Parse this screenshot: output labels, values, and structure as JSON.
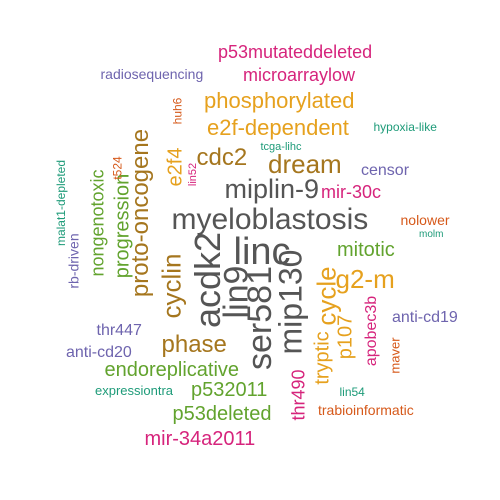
{
  "colors": {
    "gray": "#555555",
    "amber": "#E6A11E",
    "pink": "#D6247C",
    "purple": "#6E64AE",
    "green": "#62A32E",
    "brown": "#A5761E",
    "orange": "#D6591A",
    "teal": "#1E9B79"
  },
  "words": [
    {
      "text": "myeloblastosis",
      "color": "gray"
    },
    {
      "text": "linc",
      "color": "gray"
    },
    {
      "text": "acdk2",
      "color": "gray"
    },
    {
      "text": "lin9",
      "color": "gray"
    },
    {
      "text": "ser581",
      "color": "gray"
    },
    {
      "text": "mip130",
      "color": "gray"
    },
    {
      "text": "miplin-9",
      "color": "gray"
    },
    {
      "text": "dream",
      "color": "brown"
    },
    {
      "text": "cdc2",
      "color": "brown"
    },
    {
      "text": "proto-oncogene",
      "color": "brown"
    },
    {
      "text": "cyclin",
      "color": "brown"
    },
    {
      "text": "phase",
      "color": "brown"
    },
    {
      "text": "phosphorylated",
      "color": "amber"
    },
    {
      "text": "e2f-dependent",
      "color": "amber"
    },
    {
      "text": "e2f4",
      "color": "amber"
    },
    {
      "text": "g2-m",
      "color": "amber"
    },
    {
      "text": "cycle",
      "color": "amber"
    },
    {
      "text": "tryptic",
      "color": "amber"
    },
    {
      "text": "p107",
      "color": "amber"
    },
    {
      "text": "progression",
      "color": "green"
    },
    {
      "text": "nongenotoxic",
      "color": "green"
    },
    {
      "text": "mitotic",
      "color": "green"
    },
    {
      "text": "endoreplicative",
      "color": "green"
    },
    {
      "text": "p532011",
      "color": "green"
    },
    {
      "text": "p53deleted",
      "color": "green"
    },
    {
      "text": "p53mutateddeleted",
      "color": "pink"
    },
    {
      "text": "microarraylow",
      "color": "pink"
    },
    {
      "text": "mir-30c",
      "color": "pink"
    },
    {
      "text": "apobec3b",
      "color": "pink"
    },
    {
      "text": "thr490",
      "color": "pink"
    },
    {
      "text": "mir-34a2011",
      "color": "pink"
    },
    {
      "text": "lin52",
      "color": "pink"
    },
    {
      "text": "radiosequencing",
      "color": "purple"
    },
    {
      "text": "censor",
      "color": "purple"
    },
    {
      "text": "anti-cd19",
      "color": "purple"
    },
    {
      "text": "anti-cd20",
      "color": "purple"
    },
    {
      "text": "thr447",
      "color": "purple"
    },
    {
      "text": "rb-driven",
      "color": "purple"
    },
    {
      "text": "huh6",
      "color": "orange"
    },
    {
      "text": "t524",
      "color": "orange"
    },
    {
      "text": "nolower",
      "color": "orange"
    },
    {
      "text": "maver",
      "color": "orange"
    },
    {
      "text": "trabioinformatic",
      "color": "orange"
    },
    {
      "text": "hypoxia-like",
      "color": "teal"
    },
    {
      "text": "tcga-lihc",
      "color": "teal"
    },
    {
      "text": "malat1-depleted",
      "color": "teal"
    },
    {
      "text": "molm",
      "color": "teal"
    },
    {
      "text": "lin54",
      "color": "teal"
    },
    {
      "text": "expressiontra",
      "color": "teal"
    }
  ]
}
